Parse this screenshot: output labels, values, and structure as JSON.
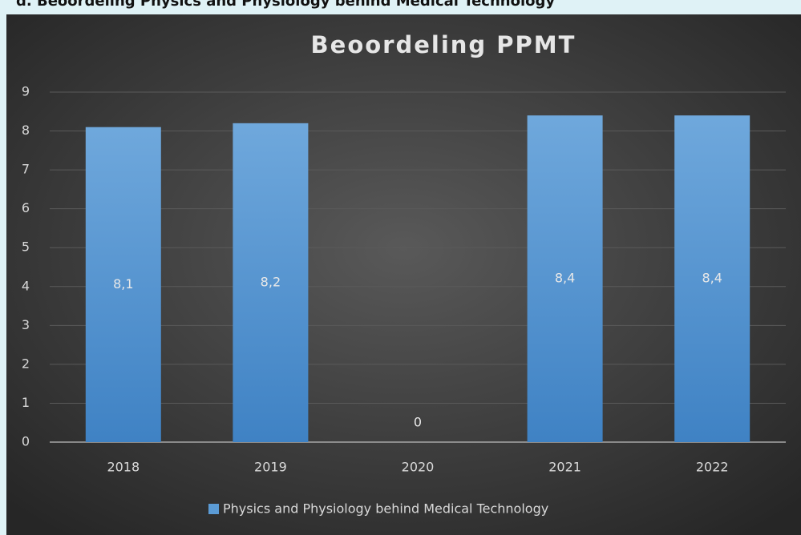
{
  "heading": "d. Beoordeling Physics and Physiology behind Medical Technology",
  "chart_data": {
    "type": "bar",
    "title": "Beoordeling PPMT",
    "categories": [
      "2018",
      "2019",
      "2020",
      "2021",
      "2022"
    ],
    "series": [
      {
        "name": "Physics and Physiology behind Medical Technology",
        "color": "#5b9bd5",
        "values": [
          8.1,
          8.2,
          0,
          8.4,
          8.4
        ],
        "value_labels": [
          "8,1",
          "8,2",
          "0",
          "8,4",
          "8,4"
        ]
      }
    ],
    "ylim": [
      0,
      9
    ],
    "yticks": [
      0,
      1,
      2,
      3,
      4,
      5,
      6,
      7,
      8,
      9
    ],
    "grid": true,
    "legend": "bottom"
  }
}
